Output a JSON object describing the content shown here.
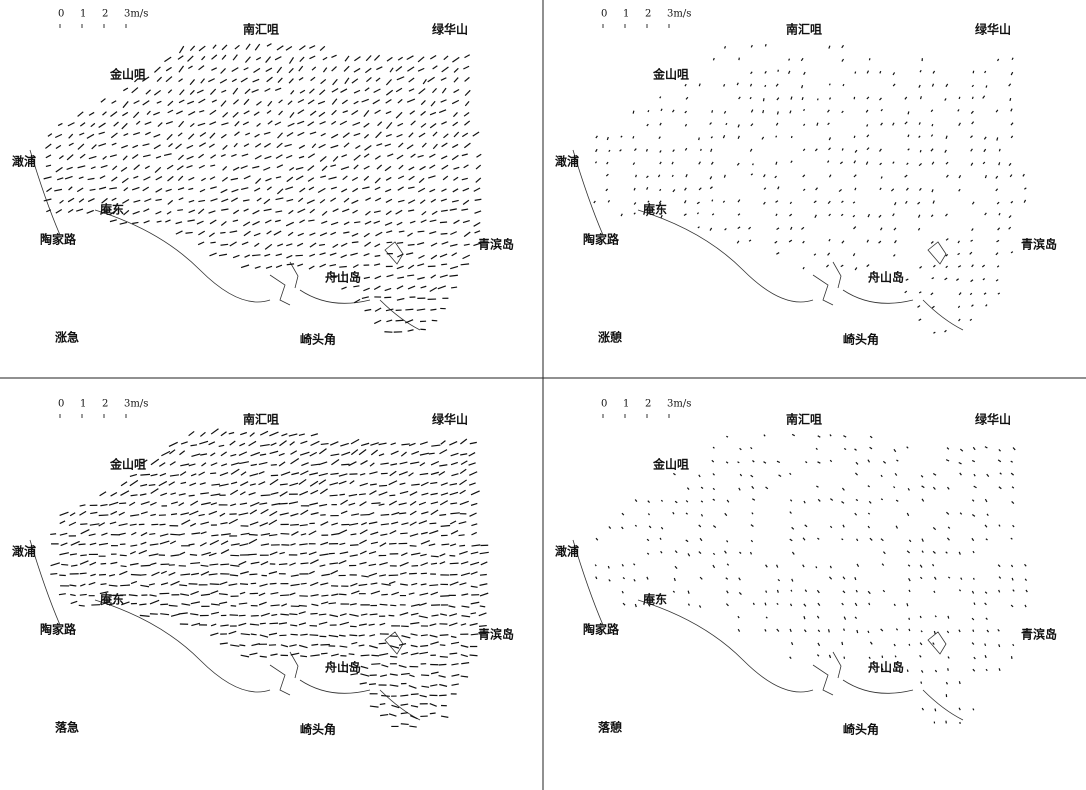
{
  "panels": [
    {
      "label": "涨急",
      "scale": [
        "0",
        "1",
        "2",
        "3m/s"
      ],
      "places": [
        "南汇咀",
        "绿华山",
        "金山咀",
        "澉浦",
        "庵东",
        "陶家路",
        "青滨岛",
        "舟山岛",
        "崎头角"
      ]
    },
    {
      "label": "涨憩",
      "scale": [
        "0",
        "1",
        "2",
        "3m/s"
      ],
      "places": [
        "南汇咀",
        "绿华山",
        "金山咀",
        "澉浦",
        "庵东",
        "陶家路",
        "青滨岛",
        "舟山岛",
        "崎头角"
      ]
    },
    {
      "label": "落急",
      "scale": [
        "0",
        "1",
        "2",
        "3m/s"
      ],
      "places": [
        "南汇咀",
        "绿华山",
        "金山咀",
        "澉浦",
        "庵东",
        "陶家路",
        "青滨岛",
        "舟山岛",
        "崎头角"
      ]
    },
    {
      "label": "落憩",
      "scale": [
        "0",
        "1",
        "2",
        "3m/s"
      ],
      "places": [
        "南汇咀",
        "绿华山",
        "金山咀",
        "澉浦",
        "庵东",
        "陶家路",
        "青滨岛",
        "舟山岛",
        "崎头角"
      ]
    }
  ]
}
